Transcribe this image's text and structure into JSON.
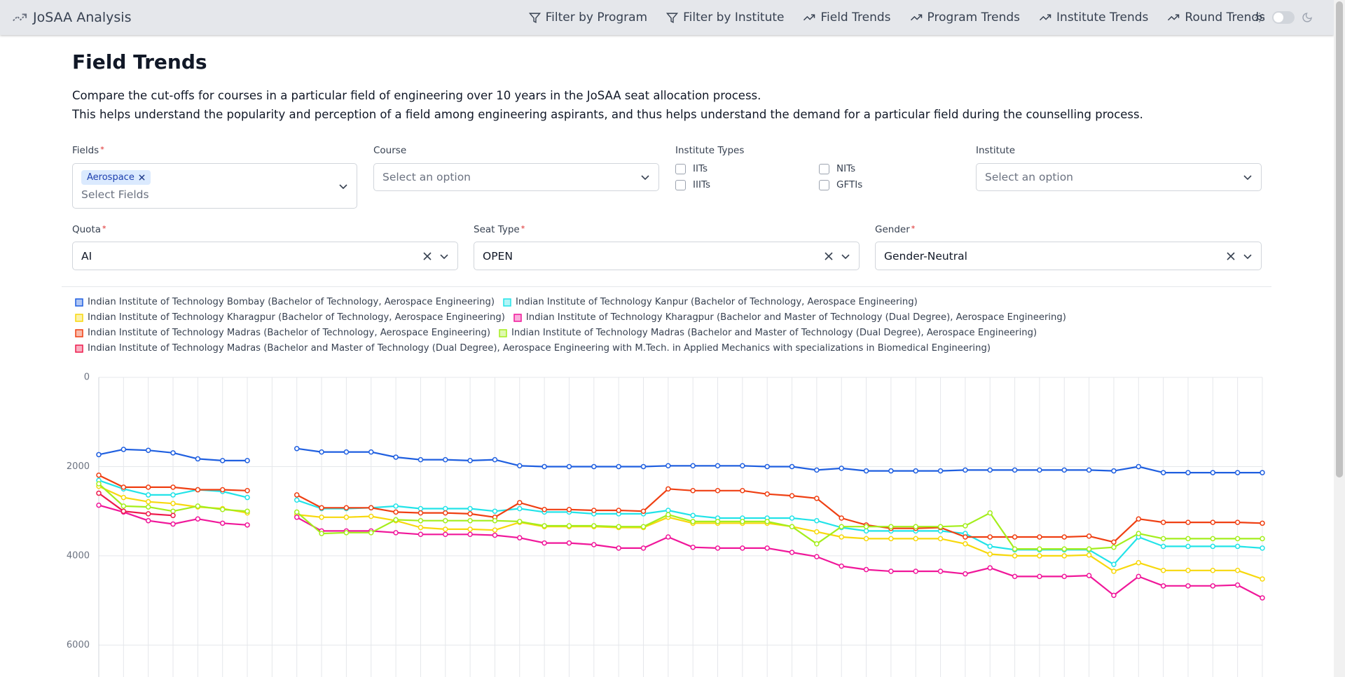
{
  "nav": {
    "brand": "JoSAA Analysis",
    "items": [
      "Filter by Program",
      "Filter by Institute",
      "Field Trends",
      "Program Trends",
      "Institute Trends",
      "Round Trends"
    ]
  },
  "header": {
    "title": "Field Trends",
    "description": [
      "Compare the cut-offs for courses in a particular field of engineering over 10 years in the JoSAA seat allocation process.",
      "This helps understand the popularity and perception of a field among engineering aspirants, and thus helps understand the demand for a particular field during the counselling process."
    ]
  },
  "form": {
    "required_mark": "*",
    "fields": {
      "label": "Fields",
      "chip": "Aerospace",
      "placeholder": "Select Fields"
    },
    "course": {
      "label": "Course",
      "placeholder": "Select an option"
    },
    "institute_types": {
      "label": "Institute Types",
      "options": [
        "IITs",
        "NITs",
        "IIITs",
        "GFTIs"
      ]
    },
    "institute": {
      "label": "Institute",
      "placeholder": "Select an option"
    },
    "quota": {
      "label": "Quota",
      "value": "AI"
    },
    "seat_type": {
      "label": "Seat Type",
      "value": "OPEN"
    },
    "gender": {
      "label": "Gender",
      "value": "Gender-Neutral"
    }
  },
  "chart_data": {
    "type": "line",
    "categories": [
      null,
      null,
      null,
      null,
      null,
      null,
      null,
      null,
      null,
      null,
      null,
      null,
      null,
      null,
      null,
      null,
      null,
      null,
      null,
      null,
      null,
      null,
      null,
      null,
      null,
      null,
      null,
      null,
      null,
      null,
      null,
      null,
      null,
      null,
      null,
      null,
      null,
      null,
      null,
      null,
      null,
      null,
      null,
      null,
      null,
      null,
      null,
      null
    ],
    "ylim": [
      6700,
      0
    ],
    "yticks": [
      0,
      2000,
      4000,
      6000
    ],
    "grid": true,
    "series": [
      {
        "name": "Indian Institute of Technology Bombay (Bachelor of Technology, Aerospace Engineering)",
        "color": "#1f5fe0",
        "values": [
          1731,
          1615,
          1635,
          1692,
          1827,
          1865,
          1865,
          null,
          1596,
          1673,
          1673,
          1673,
          1788,
          1846,
          1846,
          1865,
          1846,
          1981,
          2000,
          2000,
          2000,
          2000,
          2000,
          1981,
          1981,
          1981,
          1981,
          2000,
          2000,
          2077,
          2038,
          2096,
          2096,
          2096,
          2096,
          2077,
          2077,
          2077,
          2077,
          2077,
          2077,
          2096,
          2000,
          2135,
          2135,
          2135,
          2135,
          2135
        ]
      },
      {
        "name": "Indian Institute of Technology Kanpur (Bachelor of Technology, Aerospace Engineering)",
        "color": "#22e3e8",
        "values": [
          2308,
          2500,
          2635,
          2635,
          2519,
          2558,
          2692,
          null,
          2750,
          2942,
          2942,
          2923,
          2885,
          2942,
          2942,
          2942,
          3000,
          2942,
          3019,
          3019,
          3058,
          3058,
          3058,
          2981,
          3096,
          3154,
          3154,
          3154,
          3154,
          3212,
          3365,
          3442,
          3442,
          3442,
          3442,
          3500,
          3788,
          3865,
          3865,
          3865,
          3865,
          4192,
          3577,
          3788,
          3788,
          3788,
          3788,
          3827
        ]
      },
      {
        "name": "Indian Institute of Technology Kharagpur (Bachelor of Technology, Aerospace Engineering)",
        "color": "#f7d80c",
        "values": [
          2442,
          2692,
          2788,
          2827,
          2904,
          2942,
          3038,
          null,
          3077,
          3135,
          3135,
          3115,
          3212,
          3365,
          3404,
          3404,
          3423,
          3250,
          3346,
          3346,
          3346,
          3365,
          3365,
          3135,
          3269,
          3269,
          3269,
          3269,
          3346,
          3462,
          3577,
          3615,
          3615,
          3615,
          3615,
          3731,
          3962,
          4000,
          4000,
          4000,
          3981,
          4346,
          4154,
          4327,
          4327,
          4327,
          4327,
          4519
        ]
      },
      {
        "name": "Indian Institute of Technology Kharagpur (Bachelor and Master of Technology (Dual Degree), Aerospace Engineering)",
        "color": "#f0179a",
        "values": [
          2865,
          3019,
          3212,
          3288,
          3173,
          3269,
          3308,
          null,
          3135,
          3442,
          3442,
          3442,
          3481,
          3519,
          3519,
          3519,
          3538,
          3596,
          3712,
          3712,
          3750,
          3827,
          3827,
          3577,
          3808,
          3827,
          3827,
          3827,
          3923,
          4019,
          4231,
          4308,
          4346,
          4346,
          4346,
          4404,
          4269,
          4462,
          4462,
          4462,
          4442,
          4885,
          4462,
          4673,
          4673,
          4673,
          4654,
          4942
        ]
      },
      {
        "name": "Indian Institute of Technology Madras (Bachelor of Technology, Aerospace Engineering)",
        "color": "#ef3f12",
        "values": [
          2192,
          2462,
          2462,
          2462,
          2519,
          2519,
          2538,
          null,
          2635,
          2923,
          2923,
          2923,
          3019,
          3038,
          3038,
          3058,
          3135,
          2808,
          2962,
          2962,
          2981,
          2981,
          3000,
          2500,
          2538,
          2538,
          2538,
          2615,
          2654,
          2712,
          3154,
          3308,
          3385,
          3385,
          3365,
          3577,
          3577,
          3577,
          3577,
          3577,
          3558,
          3692,
          3173,
          3250,
          3250,
          3250,
          3250,
          3269
        ]
      },
      {
        "name": "Indian Institute of Technology Madras (Bachelor and Master of Technology (Dual Degree), Aerospace Engineering)",
        "color": "#a4ee1c",
        "values": [
          2385,
          2885,
          2904,
          3000,
          2885,
          2962,
          3000,
          null,
          3019,
          3500,
          3481,
          3481,
          3192,
          3212,
          3212,
          3212,
          3212,
          3231,
          3327,
          3327,
          3327,
          3346,
          3346,
          3077,
          3231,
          3231,
          3231,
          3231,
          3346,
          3731,
          3346,
          3346,
          3346,
          3346,
          3346,
          3327,
          3038,
          3846,
          3846,
          3846,
          3846,
          3808,
          3500,
          3615,
          3615,
          3615,
          3615,
          3615
        ]
      },
      {
        "name": "Indian Institute of Technology Madras (Bachelor and Master of Technology (Dual Degree), Aerospace Engineering with M.Tech. in Applied Mechanics with specializations in Biomedical Engineering)",
        "color": "#ee1b4d",
        "values": [
          2596,
          3000,
          3058,
          3096,
          null,
          null,
          null,
          null,
          null,
          null,
          null,
          null,
          null,
          null,
          null,
          null,
          null,
          null,
          null,
          null,
          null,
          null,
          null,
          null,
          null,
          null,
          null,
          null,
          null,
          null,
          null,
          null,
          null,
          null,
          null,
          null,
          null,
          null,
          null,
          null,
          null,
          null,
          null,
          null,
          null,
          null,
          null,
          null
        ]
      }
    ]
  }
}
